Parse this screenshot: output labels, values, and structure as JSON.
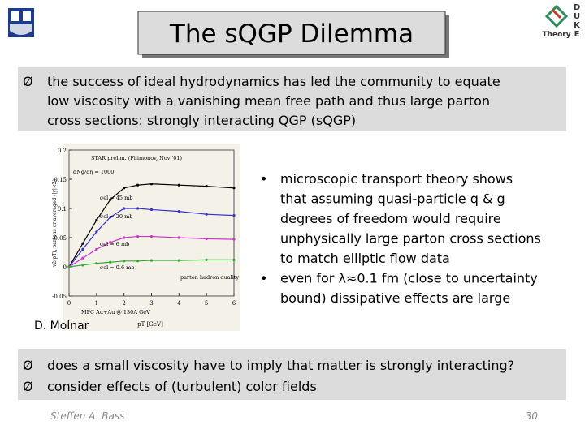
{
  "header": {
    "title": "The sQGP Dilemma",
    "logo_right": {
      "letters": [
        "D",
        "U",
        "K",
        "E"
      ],
      "label": "Theory"
    }
  },
  "intro": {
    "bullet": "Ø",
    "lines": [
      "the success of ideal hydrodynamics has led the community to equate",
      "low viscosity with a vanishing mean free path and thus large parton",
      "cross sections: strongly interacting QGP (sQGP)"
    ]
  },
  "figure": {
    "type": "line",
    "xlabel": "pT [GeV]",
    "ylabel": "v2(pT), partons or averaged (|y|<2)",
    "xlim": [
      0,
      6
    ],
    "ylim": [
      -0.05,
      0.2
    ],
    "xticks": [
      0,
      1,
      2,
      3,
      4,
      5,
      6
    ],
    "yticks": [
      0.2,
      0.15,
      0.1,
      0.05,
      0,
      -0.05
    ],
    "annotations": [
      "STAR prelim. (Filimonov, Nov '01)",
      "dNg/dη = 1000",
      "parton hadron duality",
      "MPC Au+Au @ 130A GeV"
    ],
    "x": [
      0,
      0.5,
      1,
      1.5,
      2,
      2.5,
      3,
      4,
      5,
      6
    ],
    "series": [
      {
        "name": "σel ≈ 45 mb",
        "color": "#000000",
        "values": [
          0,
          0.04,
          0.08,
          0.115,
          0.135,
          0.14,
          0.142,
          0.14,
          0.138,
          0.135
        ]
      },
      {
        "name": "σel ≈ 20 mb",
        "color": "#3333cc",
        "values": [
          0,
          0.03,
          0.06,
          0.085,
          0.1,
          0.1,
          0.098,
          0.095,
          0.09,
          0.088
        ]
      },
      {
        "name": "σel ≈ 6 mb",
        "color": "#cc33cc",
        "values": [
          0,
          0.015,
          0.03,
          0.042,
          0.05,
          0.052,
          0.052,
          0.05,
          0.048,
          0.047
        ]
      },
      {
        "name": "σel ≈ 0.6 mb",
        "color": "#33aa33",
        "values": [
          0,
          0.003,
          0.006,
          0.008,
          0.01,
          0.01,
          0.011,
          0.011,
          0.012,
          0.012
        ]
      }
    ],
    "caption": "D. Molnar"
  },
  "bullets": {
    "marker": "•",
    "items": [
      {
        "lines": [
          "microscopic transport theory shows",
          "that assuming quasi-particle q & g",
          "degrees of freedom would require",
          "unphysically large parton cross sections",
          "to match elliptic flow data"
        ]
      },
      {
        "lines": [
          "even for λ≈0.1 fm (close to uncertainty",
          "bound) dissipative effects are large"
        ]
      }
    ]
  },
  "questions": {
    "bullet": "Ø",
    "items": [
      "does a small viscosity have to imply that matter is strongly interacting?",
      "consider effects of (turbulent) color fields"
    ]
  },
  "footer": {
    "author": "Steffen A. Bass",
    "page": "30"
  }
}
